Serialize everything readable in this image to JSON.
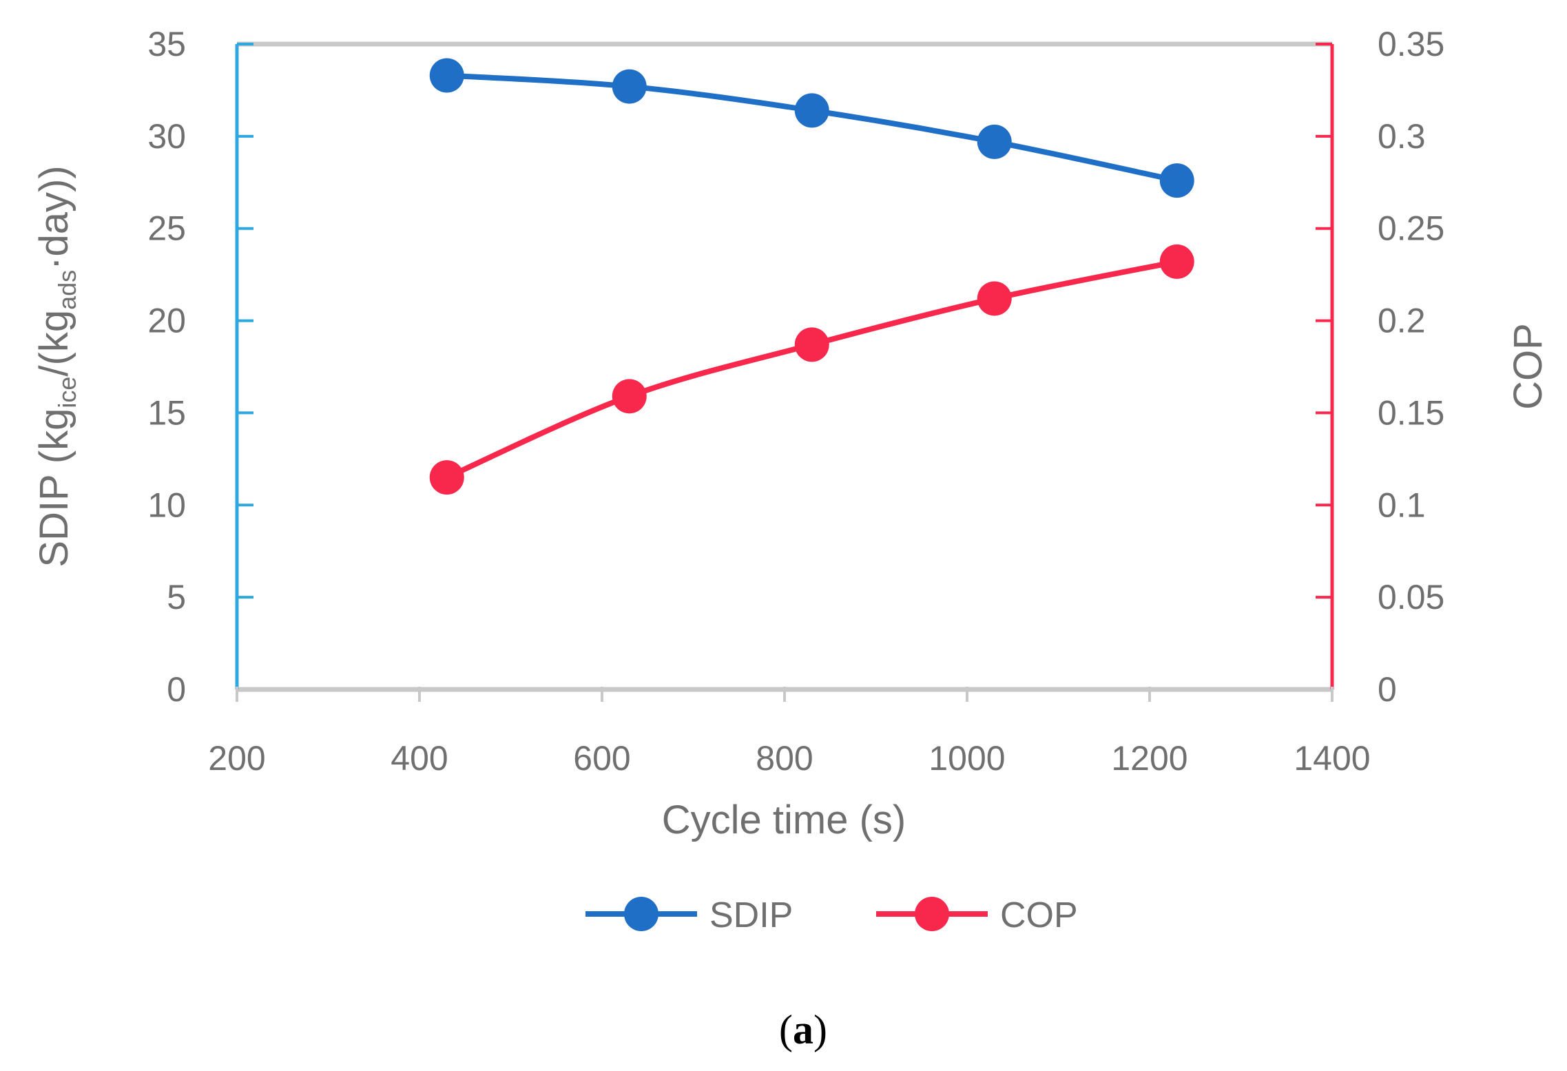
{
  "chart_data": {
    "type": "line",
    "title": "",
    "x": [
      430,
      630,
      830,
      1030,
      1230
    ],
    "series": [
      {
        "name": "SDIP",
        "axis": "left",
        "color": "#1f6fc6",
        "values": [
          33.3,
          32.7,
          31.4,
          29.7,
          27.6
        ]
      },
      {
        "name": "COP",
        "axis": "right",
        "color": "#f7284c",
        "values": [
          0.115,
          0.159,
          0.187,
          0.212,
          0.232
        ]
      }
    ],
    "xlabel": "Cycle time (s)",
    "xlim": [
      200,
      1400
    ],
    "xticks": [
      "200",
      "400",
      "600",
      "800",
      "1000",
      "1200",
      "1400"
    ],
    "ylabel_left": {
      "main": "SDIP (kg",
      "sub1": "ice",
      "mid": "/(kg",
      "sub2": "ads",
      "tail": "·day))"
    },
    "ylim_left": [
      0,
      35
    ],
    "yticks_left": [
      "0",
      "5",
      "10",
      "15",
      "20",
      "25",
      "30",
      "35"
    ],
    "ylabel_right": "COP",
    "ylim_right": [
      0,
      0.35
    ],
    "yticks_right": [
      "0",
      "0.05",
      "0.1",
      "0.15",
      "0.2",
      "0.25",
      "0.3",
      "0.35"
    ],
    "legend": [
      "SDIP",
      "COP"
    ],
    "legend_position": "bottom",
    "colors": {
      "left_axis": "#2ea8df",
      "right_axis": "#f7284c",
      "frame": "#c8c8c8",
      "text": "#6f6f6f"
    }
  },
  "caption": {
    "open": "(",
    "letter": "a",
    "close": ")"
  }
}
